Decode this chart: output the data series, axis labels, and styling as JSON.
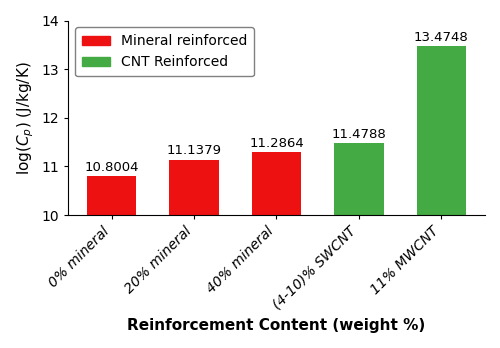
{
  "categories": [
    "0% mineral",
    "20% mineral",
    "40% mineral",
    "(4-10)% SWCNT",
    "11% MWCNT"
  ],
  "values": [
    10.8004,
    11.1379,
    11.2864,
    11.4788,
    13.4748
  ],
  "bar_colors": [
    "#ee1111",
    "#ee1111",
    "#ee1111",
    "#44aa44",
    "#44aa44"
  ],
  "bar_labels": [
    "10.8004",
    "11.1379",
    "11.2864",
    "11.4788",
    "13.4748"
  ],
  "ylabel": "log(C_p) (J/kg/K)",
  "xlabel": "Reinforcement Content (weight %)",
  "ybase": 10,
  "ylim": [
    10,
    14
  ],
  "yticks": [
    10,
    11,
    12,
    13,
    14
  ],
  "legend_labels": [
    "Mineral reinforced",
    "CNT Reinforced"
  ],
  "legend_colors": [
    "#ee1111",
    "#44aa44"
  ],
  "label_fontsize": 11,
  "tick_fontsize": 10,
  "bar_label_fontsize": 9.5
}
